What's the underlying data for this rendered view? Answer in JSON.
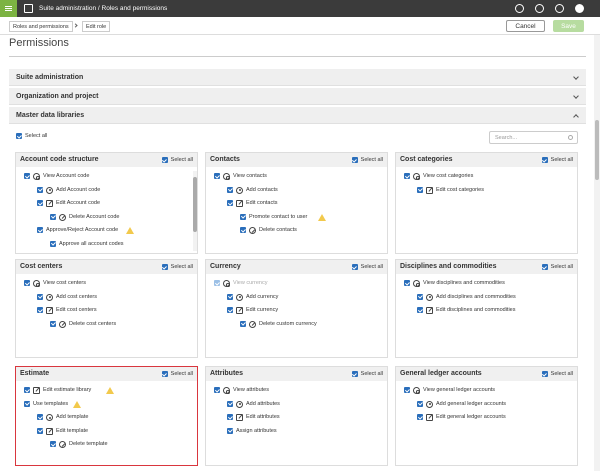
{
  "topbar": {
    "breadcrumb": "Suite administration / Roles and permissions"
  },
  "subbar": {
    "tabs": [
      "Roles and permissions",
      "Edit role"
    ],
    "cancel": "Cancel",
    "save": "Save"
  },
  "page": {
    "title": "Permissions",
    "select_all": "Select all",
    "search_placeholder": "Search..."
  },
  "sections": [
    "Suite administration",
    "Organization and project",
    "Master data libraries"
  ],
  "panels": [
    {
      "title": "Account code structure",
      "select_all": "Select all",
      "items": [
        "View Account code",
        "Add Account code",
        "Edit Account code",
        "Delete Account code",
        "Approve/Reject Account code",
        "Approve all account codes"
      ]
    },
    {
      "title": "Contacts",
      "select_all": "Select all",
      "items": [
        "View contacts",
        "Add contacts",
        "Edit contacts",
        "Promote contact to user",
        "Delete contacts"
      ]
    },
    {
      "title": "Cost categories",
      "select_all": "Select all",
      "items": [
        "View cost categories",
        "Edit cost categories"
      ]
    },
    {
      "title": "Cost centers",
      "select_all": "Select all",
      "items": [
        "View cost centers",
        "Add cost centers",
        "Edit cost centers",
        "Delete cost centers"
      ]
    },
    {
      "title": "Currency",
      "select_all": "Select all",
      "items": [
        "View currency",
        "Add currency",
        "Edit currency",
        "Delete custom currency"
      ]
    },
    {
      "title": "Disciplines and commodities",
      "select_all": "Select all",
      "items": [
        "View disciplines and commodities",
        "Add disciplines and commodities",
        "Edit disciplines and commodities"
      ]
    },
    {
      "title": "Estimate",
      "select_all": "Select all",
      "items": [
        "Edit estimate library",
        "Use templates",
        "Add template",
        "Edit template",
        "Delete template"
      ]
    },
    {
      "title": "Attributes",
      "select_all": "Select all",
      "items": [
        "View attributes",
        "Add attributes",
        "Edit attributes",
        "Assign attributes"
      ]
    },
    {
      "title": "General ledger accounts",
      "select_all": "Select all",
      "items": [
        "View general ledger accounts",
        "Add general ledger accounts",
        "Edit general ledger accounts"
      ]
    }
  ]
}
